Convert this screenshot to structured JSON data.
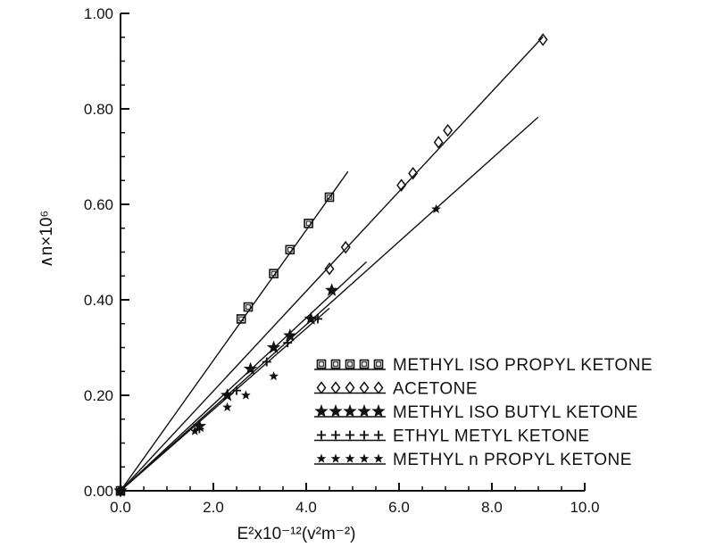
{
  "chart_data": {
    "type": "scatter",
    "xlabel": "E²x10⁻¹²(v²m⁻²)",
    "ylabel": "∧n×10⁶",
    "xlim": [
      0,
      10
    ],
    "ylim": [
      0,
      1
    ],
    "xticks": [
      "0.0",
      "2.0",
      "4.0",
      "6.0",
      "8.0",
      "10.0"
    ],
    "yticks": [
      "0.00",
      "0.20",
      "0.40",
      "0.60",
      "0.80",
      "1.00"
    ],
    "grid": false,
    "legend_position": "bottom-right",
    "series": [
      {
        "name": "METHYL ISO PROPYL KETONE",
        "marker": "square",
        "x": [
          0,
          2.6,
          2.75,
          3.3,
          3.65,
          4.05,
          4.5
        ],
        "y": [
          0,
          0.36,
          0.385,
          0.455,
          0.505,
          0.56,
          0.615
        ],
        "fit_slope": 0.1365,
        "fit_xmax": 4.9
      },
      {
        "name": "ACETONE",
        "marker": "diamond",
        "x": [
          0,
          4.5,
          4.85,
          6.05,
          6.3,
          6.85,
          7.05,
          9.1
        ],
        "y": [
          0,
          0.465,
          0.51,
          0.64,
          0.665,
          0.73,
          0.755,
          0.945
        ],
        "fit_slope": 0.1045,
        "fit_xmax": 9.1
      },
      {
        "name": "METHYL ISO BUTYL KETONE",
        "marker": "star-bold",
        "x": [
          0,
          1.7,
          2.3,
          2.8,
          3.3,
          3.65,
          4.1,
          4.55
        ],
        "y": [
          0,
          0.135,
          0.2,
          0.255,
          0.3,
          0.325,
          0.36,
          0.42
        ],
        "fit_slope": 0.0905,
        "fit_xmax": 5.3
      },
      {
        "name": "ETHYL METYL KETONE",
        "marker": "plus",
        "x": [
          0,
          1.7,
          2.5,
          3.15,
          3.6,
          4.25
        ],
        "y": [
          0,
          0.13,
          0.21,
          0.27,
          0.31,
          0.36
        ],
        "fit_slope": 0.085,
        "fit_xmax": 4.5
      },
      {
        "name": "METHYL n PROPYL KETONE",
        "marker": "star",
        "x": [
          0,
          1.6,
          2.3,
          2.7,
          3.3,
          6.8
        ],
        "y": [
          0,
          0.125,
          0.175,
          0.2,
          0.24,
          0.59
        ],
        "fit_slope": 0.087,
        "fit_xmax": 9.0
      }
    ]
  }
}
